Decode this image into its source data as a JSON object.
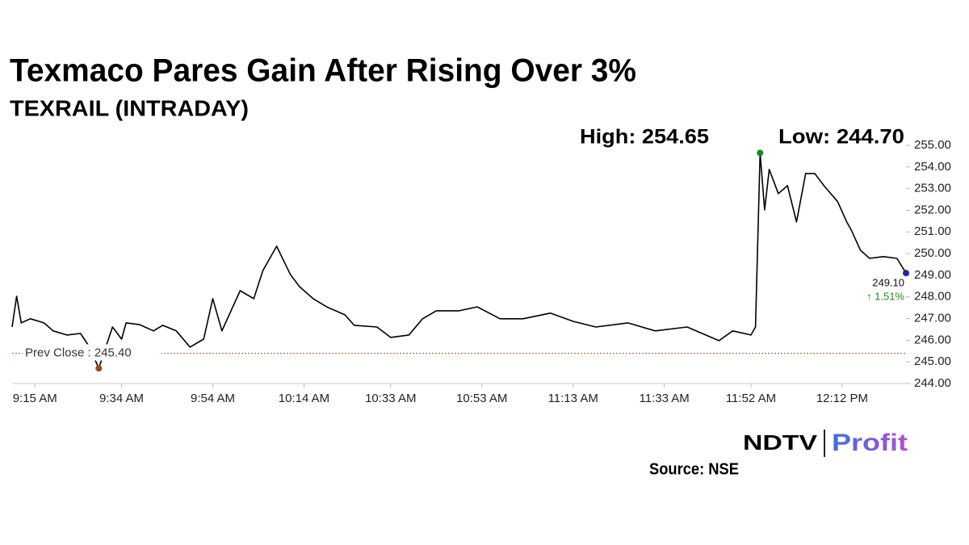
{
  "chart_data": {
    "type": "line",
    "title": "Texmaco Pares Gain After Rising Over 3%",
    "subtitle": "TEXRAIL (INTRADAY)",
    "color": "#000000",
    "x": [
      "9:10 AM",
      "9:11 AM",
      "9:12 AM",
      "9:14 AM",
      "9:17 AM",
      "9:19 AM",
      "9:22 AM",
      "9:25 AM",
      "9:27 AM",
      "9:29 AM",
      "9:32 AM",
      "9:34 AM",
      "9:35 AM",
      "9:38 AM",
      "9:41 AM",
      "9:43 AM",
      "9:46 AM",
      "9:49 AM",
      "9:52 AM",
      "9:54 AM",
      "9:56 AM",
      "9:58 AM",
      "10:00 AM",
      "10:03 AM",
      "10:05 AM",
      "10:08 AM",
      "10:11 AM",
      "10:13 AM",
      "10:16 AM",
      "10:19 AM",
      "10:23 AM",
      "10:25 AM",
      "10:30 AM",
      "10:33 AM",
      "10:37 AM",
      "10:40 AM",
      "10:43 AM",
      "10:48 AM",
      "10:52 AM",
      "10:57 AM",
      "11:02 AM",
      "11:08 AM",
      "11:13 AM",
      "11:18 AM",
      "11:25 AM",
      "11:31 AM",
      "11:38 AM",
      "11:45 AM",
      "11:48 AM",
      "11:52 AM",
      "11:53 AM",
      "11:54 AM",
      "11:55 AM",
      "11:56 AM",
      "11:58 AM",
      "12:00 PM",
      "12:02 PM",
      "12:04 PM",
      "12:06 PM",
      "12:08 PM",
      "12:11 PM",
      "12:13 PM",
      "12:14 PM",
      "12:16 PM",
      "12:18 PM",
      "12:21 PM",
      "12:24 PM",
      "12:26 PM"
    ],
    "values": [
      246.61,
      248.03,
      246.8,
      246.99,
      246.8,
      246.43,
      246.24,
      246.31,
      245.68,
      244.7,
      246.61,
      246.05,
      246.8,
      246.72,
      246.43,
      246.69,
      246.43,
      245.68,
      246.05,
      247.92,
      246.43,
      247.36,
      248.29,
      247.92,
      249.22,
      250.34,
      249.04,
      248.48,
      247.92,
      247.54,
      247.17,
      246.69,
      246.61,
      246.13,
      246.24,
      246.99,
      247.36,
      247.36,
      247.54,
      246.99,
      246.99,
      247.25,
      246.87,
      246.61,
      246.8,
      246.43,
      246.61,
      245.98,
      246.43,
      246.24,
      246.61,
      254.65,
      252.02,
      253.89,
      252.77,
      253.14,
      251.46,
      253.7,
      253.7,
      253.14,
      252.4,
      251.46,
      251.09,
      250.16,
      249.78,
      249.86,
      249.78,
      249.1
    ],
    "xticks": [
      "9:15 AM",
      "9:34 AM",
      "9:54 AM",
      "10:14 AM",
      "10:33 AM",
      "10:53 AM",
      "11:13 AM",
      "11:33 AM",
      "11:52 AM",
      "12:12 PM"
    ],
    "ylim": [
      244,
      255
    ],
    "yticks": [
      {
        "value": 244,
        "label": "244.00"
      },
      {
        "value": 245,
        "label": "245.00"
      },
      {
        "value": 246,
        "label": "246.00"
      },
      {
        "value": 247,
        "label": "247.00"
      },
      {
        "value": 248,
        "label": "248.00"
      },
      {
        "value": 249,
        "label": "249.00"
      },
      {
        "value": 250,
        "label": "250.00"
      },
      {
        "value": 251,
        "label": "251.00"
      },
      {
        "value": 252,
        "label": "252.00"
      },
      {
        "value": 253,
        "label": "253.00"
      },
      {
        "value": 254,
        "label": "254.00"
      },
      {
        "value": 255,
        "label": "255.00"
      }
    ],
    "high": {
      "label": "High: 254.65",
      "value": 254.65,
      "color": "#1a8a1a"
    },
    "low": {
      "label": "Low: 244.70",
      "value": 244.7,
      "color": "#a0441a"
    },
    "last": {
      "label": "249.10",
      "value": 249.1,
      "color": "#1a2a9a"
    },
    "change": "↑ 1.51%",
    "prev_close": {
      "label": "Prev Close : 245.40",
      "value": 245.4,
      "color": "#c0562a"
    },
    "source": "Source: NSE",
    "logo": {
      "left": "NDTV",
      "right": "Profit"
    }
  }
}
